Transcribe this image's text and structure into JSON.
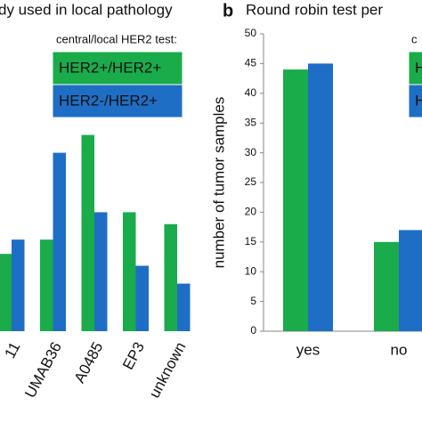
{
  "chart_data": [
    {
      "type": "bar",
      "title": "dy used in local pathology",
      "legend_title": "central/local HER2 test:",
      "categories": [
        "11",
        "UMAB36",
        "A0485",
        "EP3",
        "unknown"
      ],
      "series": [
        {
          "name": "HER2+/HER2+",
          "color": "#1aab4b",
          "values": [
            13,
            15.4,
            33,
            20,
            18
          ]
        },
        {
          "name": "HER2-/HER2+",
          "color": "#1f6ec5",
          "values": [
            15.4,
            30,
            20,
            11,
            8
          ]
        }
      ],
      "ylim": [
        0,
        50
      ]
    },
    {
      "type": "bar",
      "panel_label": "b",
      "title": "Round robin test per",
      "legend_title": "c",
      "y_label": "number of tumor samples",
      "categories": [
        "yes",
        "no"
      ],
      "series": [
        {
          "name": "HER2+/HER2+",
          "color": "#1aab4b",
          "values": [
            44,
            15
          ]
        },
        {
          "name": "HER2-/HER2+",
          "color": "#1f6ec5",
          "values": [
            45,
            17
          ]
        }
      ],
      "ylim": [
        0,
        50
      ],
      "yticks": [
        0,
        5,
        10,
        15,
        20,
        25,
        30,
        35,
        40,
        45,
        50
      ]
    }
  ]
}
